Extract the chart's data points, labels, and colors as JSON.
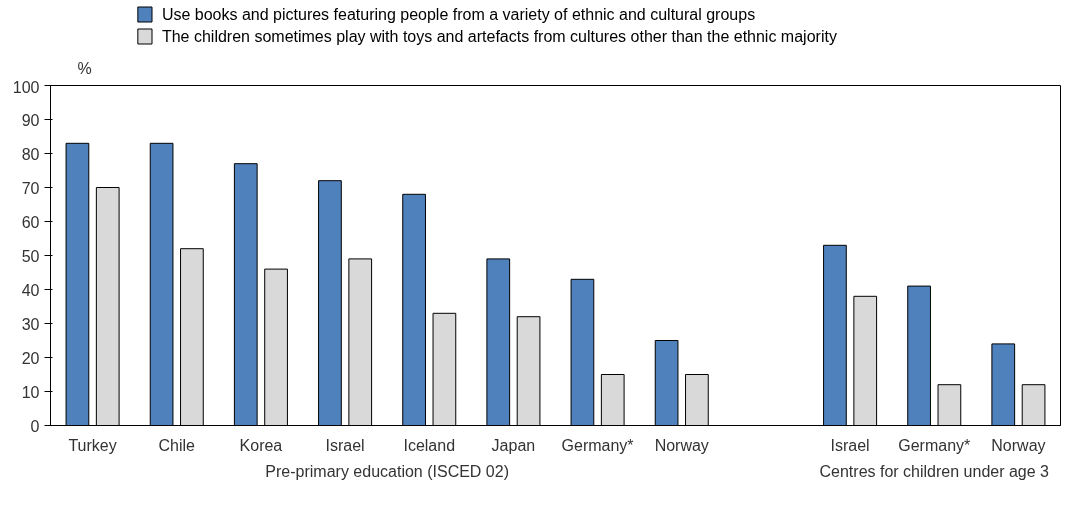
{
  "chart_data": {
    "type": "bar",
    "ylabel": "%",
    "categories": [
      "Turkey",
      "Chile",
      "Korea",
      "Israel",
      "Iceland",
      "Japan",
      "Germany*",
      "Norway",
      null,
      "Israel",
      "Germany*",
      "Norway"
    ],
    "series": [
      {
        "name": "Use books and pictures featuring people from a variety of ethnic and cultural groups",
        "color": "#4f81bd",
        "values": [
          83,
          83,
          77,
          72,
          68,
          49,
          43,
          25,
          null,
          53,
          41,
          24
        ]
      },
      {
        "name": "The children sometimes play with toys and artefacts from cultures other than the ethnic majority",
        "color": "#d9d9d9",
        "values": [
          70,
          52,
          46,
          49,
          33,
          32,
          15,
          15,
          null,
          38,
          12,
          12
        ]
      }
    ],
    "ylim": [
      0,
      100
    ],
    "yticks": [
      0,
      10,
      20,
      30,
      40,
      50,
      60,
      70,
      80,
      90,
      100
    ],
    "grid": false,
    "legend": "top",
    "annotations": [
      "Pre-primary education (ISCED 02)",
      "Centres for children under age 3"
    ]
  }
}
